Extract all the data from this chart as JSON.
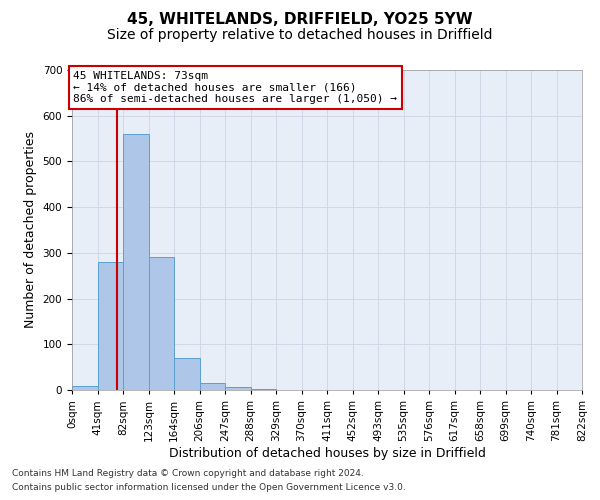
{
  "title": "45, WHITELANDS, DRIFFIELD, YO25 5YW",
  "subtitle": "Size of property relative to detached houses in Driffield",
  "xlabel": "Distribution of detached houses by size in Driffield",
  "ylabel": "Number of detached properties",
  "footnote1": "Contains HM Land Registry data © Crown copyright and database right 2024.",
  "footnote2": "Contains public sector information licensed under the Open Government Licence v3.0.",
  "bin_labels": [
    "0sqm",
    "41sqm",
    "82sqm",
    "123sqm",
    "164sqm",
    "206sqm",
    "247sqm",
    "288sqm",
    "329sqm",
    "370sqm",
    "411sqm",
    "452sqm",
    "493sqm",
    "535sqm",
    "576sqm",
    "617sqm",
    "658sqm",
    "699sqm",
    "740sqm",
    "781sqm",
    "822sqm"
  ],
  "bar_values": [
    8,
    280,
    560,
    290,
    70,
    15,
    6,
    2,
    0,
    0,
    0,
    0,
    0,
    0,
    0,
    0,
    0,
    0,
    0,
    0
  ],
  "bar_color": "#aec6e8",
  "bar_edge_color": "#5a9fd4",
  "vline_x": 73,
  "vline_color": "#cc0000",
  "annotation_text": "45 WHITELANDS: 73sqm\n← 14% of detached houses are smaller (166)\n86% of semi-detached houses are larger (1,050) →",
  "annotation_box_color": "#ffffff",
  "annotation_box_edge": "#cc0000",
  "ylim": [
    0,
    700
  ],
  "yticks": [
    0,
    100,
    200,
    300,
    400,
    500,
    600,
    700
  ],
  "grid_color": "#d0d8e8",
  "bg_color": "#e8eef8",
  "title_fontsize": 11,
  "subtitle_fontsize": 10,
  "axis_fontsize": 9,
  "tick_fontsize": 7.5
}
